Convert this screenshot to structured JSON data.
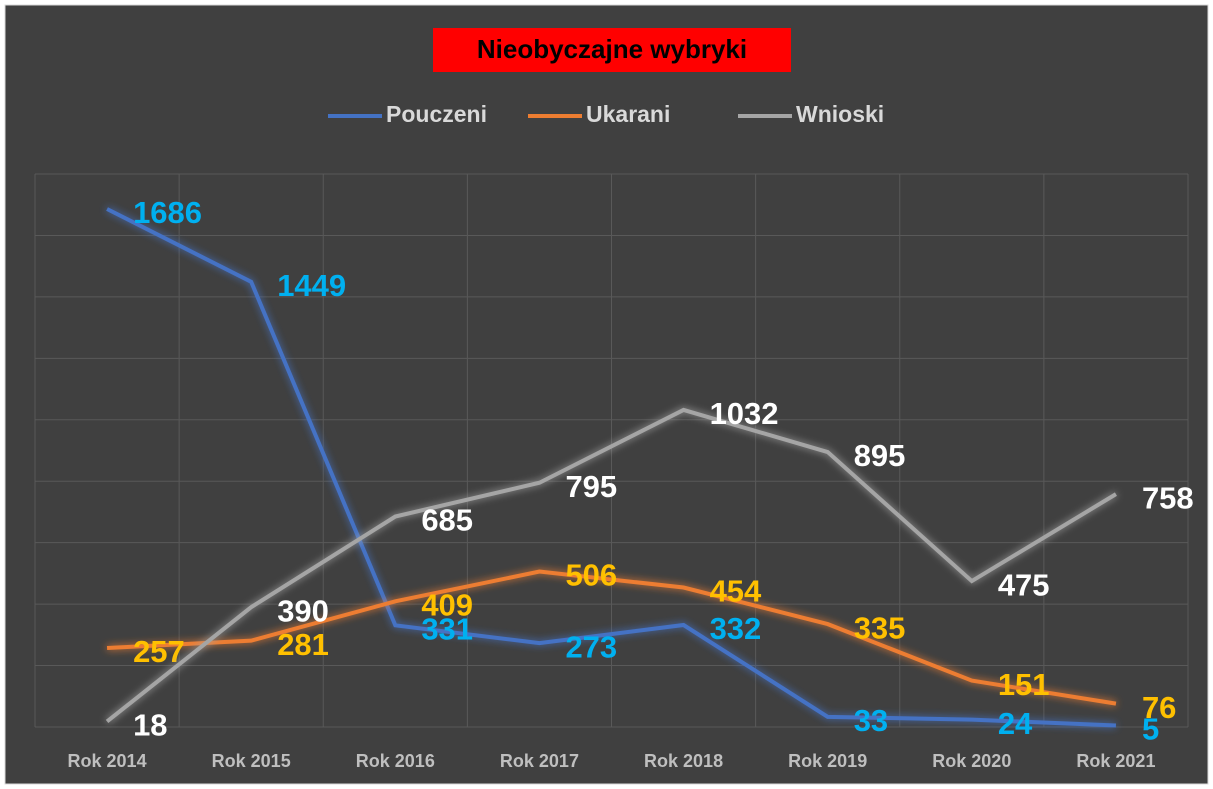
{
  "chart_data": {
    "type": "line",
    "title": "Nieobyczajne wybryki",
    "categories": [
      "Rok 2014",
      "Rok 2015",
      "Rok 2016",
      "Rok 2017",
      "Rok 2018",
      "Rok 2019",
      "Rok 2020",
      "Rok 2021"
    ],
    "series": [
      {
        "name": "Pouczeni",
        "color": "#4472c4",
        "label_color": "#00b0f0",
        "values": [
          1686,
          1449,
          331,
          273,
          332,
          33,
          24,
          5
        ]
      },
      {
        "name": "Ukarani",
        "color": "#ed7d31",
        "label_color": "#ffc000",
        "values": [
          257,
          281,
          409,
          506,
          454,
          335,
          151,
          76
        ]
      },
      {
        "name": "Wnioski",
        "color": "#a5a5a5",
        "label_color": "#ffffff",
        "values": [
          18,
          390,
          685,
          795,
          1032,
          895,
          475,
          758
        ]
      }
    ],
    "ylim": [
      0,
      1800
    ],
    "yticks": [
      0,
      200,
      400,
      600,
      800,
      1000,
      1200,
      1400,
      1600,
      1800
    ],
    "grid": true
  }
}
